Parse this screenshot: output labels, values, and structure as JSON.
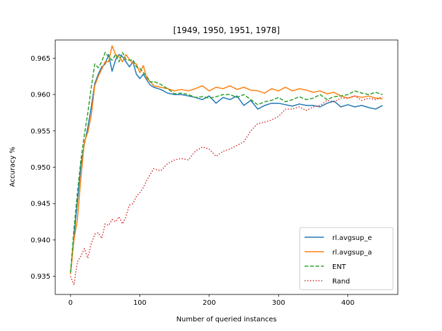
{
  "chart_data": {
    "type": "line",
    "title": "[1949, 1950, 1951, 1978]",
    "xlabel": "Number of queried instances",
    "ylabel": "Accuracy %",
    "xlim": [
      -22,
      472
    ],
    "ylim": [
      0.9325,
      0.9675
    ],
    "xticks": [
      0,
      100,
      200,
      300,
      400
    ],
    "yticks": [
      0.935,
      0.94,
      0.945,
      0.95,
      0.955,
      0.96,
      0.965
    ],
    "ytick_labels": [
      "0.935",
      "0.940",
      "0.945",
      "0.950",
      "0.955",
      "0.960",
      "0.965"
    ],
    "grid": false,
    "legend_position": "lower right",
    "series": [
      {
        "name": "rl.avgsup_e",
        "color": "#1f77b4",
        "style": "solid",
        "x": [
          0,
          5,
          10,
          15,
          20,
          25,
          30,
          35,
          40,
          45,
          50,
          55,
          60,
          65,
          70,
          75,
          80,
          85,
          90,
          95,
          100,
          105,
          110,
          115,
          120,
          130,
          140,
          150,
          160,
          170,
          180,
          190,
          200,
          210,
          220,
          230,
          240,
          250,
          260,
          270,
          280,
          290,
          300,
          310,
          320,
          330,
          340,
          350,
          360,
          370,
          380,
          390,
          400,
          410,
          420,
          430,
          440,
          450
        ],
        "y": [
          0.9353,
          0.9405,
          0.9452,
          0.9502,
          0.9532,
          0.9555,
          0.9583,
          0.9615,
          0.9628,
          0.9638,
          0.9642,
          0.9655,
          0.9632,
          0.9648,
          0.9655,
          0.9652,
          0.9645,
          0.9638,
          0.9645,
          0.9628,
          0.9622,
          0.9628,
          0.962,
          0.9613,
          0.961,
          0.9607,
          0.9602,
          0.96,
          0.96,
          0.9598,
          0.9596,
          0.9593,
          0.9598,
          0.9588,
          0.9596,
          0.9593,
          0.9598,
          0.9585,
          0.9592,
          0.958,
          0.9585,
          0.9588,
          0.9588,
          0.9586,
          0.9584,
          0.9587,
          0.9585,
          0.9585,
          0.9583,
          0.9588,
          0.9591,
          0.9583,
          0.9586,
          0.9583,
          0.9585,
          0.9582,
          0.958,
          0.9585
        ]
      },
      {
        "name": "rl.avgsup_a",
        "color": "#ff7f0e",
        "style": "solid",
        "x": [
          0,
          5,
          10,
          15,
          20,
          25,
          30,
          35,
          40,
          45,
          50,
          55,
          60,
          65,
          70,
          75,
          80,
          85,
          90,
          95,
          100,
          105,
          110,
          115,
          120,
          130,
          140,
          150,
          160,
          170,
          180,
          190,
          200,
          210,
          220,
          230,
          240,
          250,
          260,
          270,
          280,
          290,
          300,
          310,
          320,
          330,
          340,
          350,
          360,
          370,
          380,
          390,
          400,
          410,
          420,
          430,
          440,
          450
        ],
        "y": [
          0.9353,
          0.94,
          0.9428,
          0.9485,
          0.9535,
          0.9548,
          0.9572,
          0.9612,
          0.9625,
          0.9635,
          0.9645,
          0.9645,
          0.9667,
          0.9655,
          0.9652,
          0.9645,
          0.9655,
          0.9648,
          0.9643,
          0.9642,
          0.963,
          0.964,
          0.9622,
          0.9618,
          0.9612,
          0.961,
          0.9608,
          0.9605,
          0.9607,
          0.9605,
          0.9608,
          0.9612,
          0.9605,
          0.961,
          0.9608,
          0.9612,
          0.9607,
          0.961,
          0.9606,
          0.9605,
          0.9602,
          0.9608,
          0.9605,
          0.961,
          0.9605,
          0.9608,
          0.9606,
          0.9603,
          0.9605,
          0.9601,
          0.9603,
          0.9598,
          0.9595,
          0.9598,
          0.9596,
          0.9598,
          0.9595,
          0.9594
        ]
      },
      {
        "name": "ENT",
        "color": "#2ca02c",
        "style": "dashed",
        "x": [
          0,
          5,
          10,
          15,
          20,
          25,
          30,
          35,
          40,
          45,
          50,
          55,
          60,
          65,
          70,
          75,
          80,
          85,
          90,
          95,
          100,
          105,
          110,
          115,
          120,
          130,
          140,
          150,
          160,
          170,
          180,
          190,
          200,
          210,
          220,
          230,
          240,
          250,
          260,
          270,
          280,
          290,
          300,
          310,
          320,
          330,
          340,
          350,
          360,
          370,
          380,
          390,
          400,
          410,
          420,
          430,
          440,
          450
        ],
        "y": [
          0.9355,
          0.9415,
          0.9465,
          0.951,
          0.9545,
          0.9575,
          0.961,
          0.9642,
          0.9637,
          0.9645,
          0.9658,
          0.9652,
          0.9647,
          0.9655,
          0.9645,
          0.9658,
          0.9648,
          0.9647,
          0.9648,
          0.9638,
          0.9636,
          0.963,
          0.9625,
          0.9617,
          0.9618,
          0.9614,
          0.9608,
          0.9601,
          0.9602,
          0.96,
          0.9596,
          0.9597,
          0.9595,
          0.9597,
          0.96,
          0.96,
          0.9596,
          0.96,
          0.9593,
          0.9586,
          0.959,
          0.9592,
          0.9596,
          0.959,
          0.9593,
          0.9597,
          0.9593,
          0.9595,
          0.96,
          0.9593,
          0.9597,
          0.9598,
          0.96,
          0.9605,
          0.9602,
          0.96,
          0.9603,
          0.96
        ]
      },
      {
        "name": "Rand",
        "color": "#d62728",
        "style": "dotted",
        "x": [
          0,
          5,
          10,
          15,
          20,
          25,
          30,
          35,
          40,
          45,
          50,
          55,
          60,
          65,
          70,
          75,
          80,
          85,
          90,
          95,
          100,
          105,
          110,
          115,
          120,
          130,
          140,
          150,
          160,
          170,
          180,
          190,
          200,
          210,
          220,
          230,
          240,
          250,
          260,
          270,
          280,
          290,
          300,
          310,
          320,
          330,
          340,
          350,
          360,
          370,
          380,
          390,
          400,
          410,
          420,
          430,
          440,
          450
        ],
        "y": [
          0.935,
          0.9338,
          0.937,
          0.9378,
          0.9388,
          0.9375,
          0.9395,
          0.9408,
          0.941,
          0.9402,
          0.9422,
          0.942,
          0.9428,
          0.9425,
          0.9432,
          0.9422,
          0.9432,
          0.9448,
          0.945,
          0.946,
          0.9465,
          0.9472,
          0.9482,
          0.949,
          0.9498,
          0.9495,
          0.9505,
          0.951,
          0.9512,
          0.951,
          0.9522,
          0.9528,
          0.9525,
          0.9515,
          0.9522,
          0.9525,
          0.953,
          0.9535,
          0.955,
          0.956,
          0.9562,
          0.9565,
          0.957,
          0.958,
          0.958,
          0.9583,
          0.9578,
          0.9583,
          0.9585,
          0.9592,
          0.959,
          0.9595,
          0.9595,
          0.9598,
          0.9592,
          0.9595,
          0.9593,
          0.9597
        ]
      }
    ]
  }
}
